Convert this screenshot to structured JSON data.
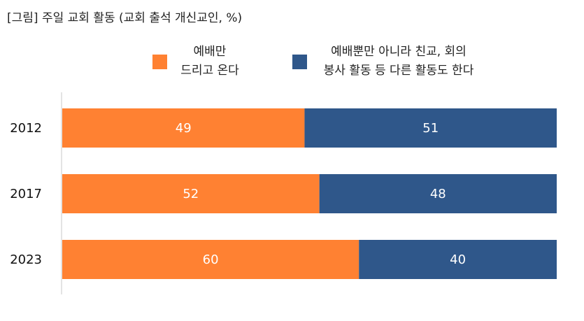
{
  "chart_data": {
    "type": "bar",
    "orientation": "horizontal",
    "stacked": true,
    "title": "[그림] 주일 교회 활동 (교회 출석 개신교인, %)",
    "categories": [
      "2012",
      "2017",
      "2023"
    ],
    "series": [
      {
        "name": "예배만 드리고 온다",
        "name_lines": [
          "예배만",
          "드리고 온다"
        ],
        "color": "#FF8132",
        "values": [
          49,
          52,
          60
        ]
      },
      {
        "name": "예배뿐만 아니라 친교, 회의 봉사 활동 등 다른 활동도 한다",
        "name_lines": [
          "예배뿐만 아니라 친교, 회의",
          "봉사 활동 등 다른 활동도 한다"
        ],
        "color": "#2F578A",
        "values": [
          51,
          48,
          40
        ]
      }
    ],
    "xlim": [
      0,
      100
    ],
    "grid": false,
    "legend_position": "top"
  }
}
